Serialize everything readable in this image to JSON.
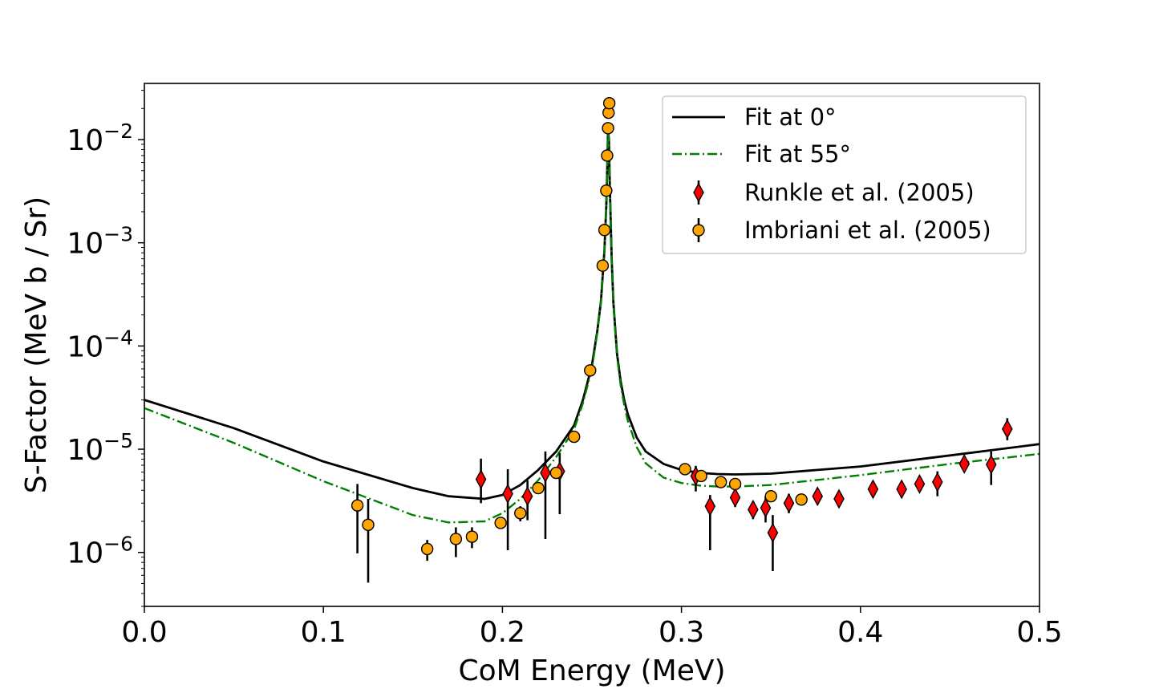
{
  "chart_data": {
    "type": "scatter",
    "xlabel": "CoM Energy (MeV)",
    "ylabel": "S-Factor (MeV b / Sr)",
    "xlim": [
      0.0,
      0.5
    ],
    "ylim": [
      3e-07,
      0.035
    ],
    "yscale": "log",
    "grid": false,
    "legend_position": "top-right",
    "xticks": [
      {
        "value": 0.0,
        "label": "0.0"
      },
      {
        "value": 0.1,
        "label": "0.1"
      },
      {
        "value": 0.2,
        "label": "0.2"
      },
      {
        "value": 0.3,
        "label": "0.3"
      },
      {
        "value": 0.4,
        "label": "0.4"
      },
      {
        "value": 0.5,
        "label": "0.5"
      }
    ],
    "yticks": [
      {
        "value": 1e-06,
        "base": "10",
        "exp": "−6"
      },
      {
        "value": 1e-05,
        "base": "10",
        "exp": "−5"
      },
      {
        "value": 0.0001,
        "base": "10",
        "exp": "−4"
      },
      {
        "value": 0.001,
        "base": "10",
        "exp": "−3"
      },
      {
        "value": 0.01,
        "base": "10",
        "exp": "−2"
      }
    ],
    "series": [
      {
        "name": "Fit at 0°",
        "kind": "line",
        "color": "#000000",
        "dash": "solid",
        "x": [
          0.0,
          0.05,
          0.1,
          0.15,
          0.17,
          0.19,
          0.2,
          0.21,
          0.22,
          0.23,
          0.24,
          0.245,
          0.25,
          0.253,
          0.255,
          0.257,
          0.258,
          0.2585,
          0.259,
          0.2595,
          0.26,
          0.261,
          0.262,
          0.264,
          0.266,
          0.268,
          0.27,
          0.275,
          0.28,
          0.29,
          0.3,
          0.31,
          0.32,
          0.33,
          0.35,
          0.4,
          0.45,
          0.5
        ],
        "y": [
          3e-05,
          1.6e-05,
          7.6e-06,
          4.2e-06,
          3.5e-06,
          3.3e-06,
          3.6e-06,
          4.5e-06,
          6.3e-06,
          9.5e-06,
          1.7e-05,
          3e-05,
          6.5e-05,
          0.00014,
          0.00027,
          0.00085,
          0.0023,
          0.005,
          0.0125,
          0.01,
          0.0035,
          0.0007,
          0.00026,
          8.5e-05,
          4.6e-05,
          3e-05,
          2.2e-05,
          1.3e-05,
          9.5e-06,
          7.2e-06,
          6.3e-06,
          5.9e-06,
          5.75e-06,
          5.7e-06,
          5.8e-06,
          6.8e-06,
          8.7e-06,
          1.12e-05
        ]
      },
      {
        "name": "Fit at 55°",
        "kind": "line",
        "color": "#008000",
        "dash": "dashdot",
        "x": [
          0.0,
          0.05,
          0.1,
          0.15,
          0.17,
          0.19,
          0.2,
          0.21,
          0.22,
          0.23,
          0.24,
          0.245,
          0.25,
          0.253,
          0.255,
          0.257,
          0.258,
          0.2585,
          0.259,
          0.2595,
          0.26,
          0.261,
          0.262,
          0.264,
          0.266,
          0.268,
          0.27,
          0.275,
          0.28,
          0.29,
          0.3,
          0.31,
          0.32,
          0.33,
          0.35,
          0.4,
          0.45,
          0.5
        ],
        "y": [
          2.5e-05,
          1.15e-05,
          4.9e-06,
          2.3e-06,
          1.95e-06,
          2e-06,
          2.4e-06,
          3.3e-06,
          5e-06,
          8.4e-06,
          1.55e-05,
          2.8e-05,
          6e-05,
          0.000135,
          0.00026,
          0.00082,
          0.0022,
          0.0048,
          0.012,
          0.0096,
          0.0034,
          0.00068,
          0.00025,
          8e-05,
          4.2e-05,
          2.7e-05,
          1.9e-05,
          1.05e-05,
          7.3e-06,
          5.3e-06,
          4.7e-06,
          4.45e-06,
          4.35e-06,
          4.35e-06,
          4.5e-06,
          5.6e-06,
          7.2e-06,
          9e-06
        ]
      },
      {
        "name": "Runkle et al. (2005)",
        "kind": "points",
        "marker": "diamond",
        "color": "#ff0000",
        "x": [
          0.188,
          0.203,
          0.214,
          0.224,
          0.232,
          0.308,
          0.316,
          0.33,
          0.34,
          0.347,
          0.351,
          0.36,
          0.376,
          0.388,
          0.407,
          0.423,
          0.433,
          0.443,
          0.458,
          0.473,
          0.482
        ],
        "y": [
          5.1e-06,
          3.7e-06,
          3.5e-06,
          5.9e-06,
          6.1e-06,
          5.5e-06,
          2.8e-06,
          3.4e-06,
          2.6e-06,
          2.7e-06,
          1.55e-06,
          3e-06,
          3.5e-06,
          3.3e-06,
          4.1e-06,
          4.1e-06,
          4.6e-06,
          4.8e-06,
          7.2e-06,
          7.1e-06,
          1.57e-05
        ],
        "y_low": [
          3e-06,
          1.05e-06,
          2.05e-06,
          1.35e-06,
          2.35e-06,
          3.9e-06,
          1.05e-06,
          2.75e-06,
          2.1e-06,
          1.95e-06,
          6.6e-07,
          2.4e-06,
          2.9e-06,
          2.8e-06,
          3.4e-06,
          3.4e-06,
          3.9e-06,
          3.5e-06,
          6.1e-06,
          4.5e-06,
          1.22e-05
        ],
        "y_high": [
          8.1e-06,
          6.4e-06,
          5e-06,
          9.5e-06,
          9.2e-06,
          6.9e-06,
          3.6e-06,
          4e-06,
          3.1e-06,
          3.5e-06,
          2.3e-06,
          3.7e-06,
          4.1e-06,
          3.8e-06,
          4.7e-06,
          4.7e-06,
          5.3e-06,
          6.1e-06,
          8.5e-06,
          9.5e-06,
          2e-05
        ]
      },
      {
        "name": "Imbriani et al. (2005)",
        "kind": "points",
        "marker": "circle",
        "color": "#ffa500",
        "x": [
          0.119,
          0.125,
          0.158,
          0.174,
          0.183,
          0.199,
          0.21,
          0.22,
          0.23,
          0.24,
          0.249,
          0.256,
          0.257,
          0.258,
          0.2585,
          0.259,
          0.2593,
          0.2597,
          0.302,
          0.311,
          0.322,
          0.33,
          0.35,
          0.367
        ],
        "y": [
          2.85e-06,
          1.85e-06,
          1.08e-06,
          1.35e-06,
          1.42e-06,
          1.93e-06,
          2.4e-06,
          4.2e-06,
          5.9e-06,
          1.32e-05,
          5.8e-05,
          0.0006,
          0.00133,
          0.0032,
          0.007,
          0.0129,
          0.0182,
          0.0225,
          6.4e-06,
          5.5e-06,
          4.8e-06,
          4.6e-06,
          3.5e-06,
          3.25e-06
        ],
        "y_low": [
          9.8e-07,
          5.1e-07,
          8.3e-07,
          9e-07,
          1.1e-06,
          1.93e-06,
          2e-06,
          4.2e-06,
          5.9e-06,
          1.32e-05,
          5.8e-05,
          0.0006,
          0.00133,
          0.0032,
          0.007,
          0.0129,
          0.0182,
          0.0225,
          6.4e-06,
          5.5e-06,
          4.8e-06,
          4.6e-06,
          3.5e-06,
          3.25e-06
        ],
        "y_high": [
          4.6e-06,
          3.3e-06,
          1.32e-06,
          1.75e-06,
          1.75e-06,
          1.93e-06,
          2.8e-06,
          4.2e-06,
          5.9e-06,
          1.32e-05,
          5.8e-05,
          0.0006,
          0.00133,
          0.0032,
          0.007,
          0.0129,
          0.0182,
          0.0225,
          6.4e-06,
          5.5e-06,
          4.8e-06,
          4.6e-06,
          3.5e-06,
          3.25e-06
        ]
      }
    ]
  }
}
